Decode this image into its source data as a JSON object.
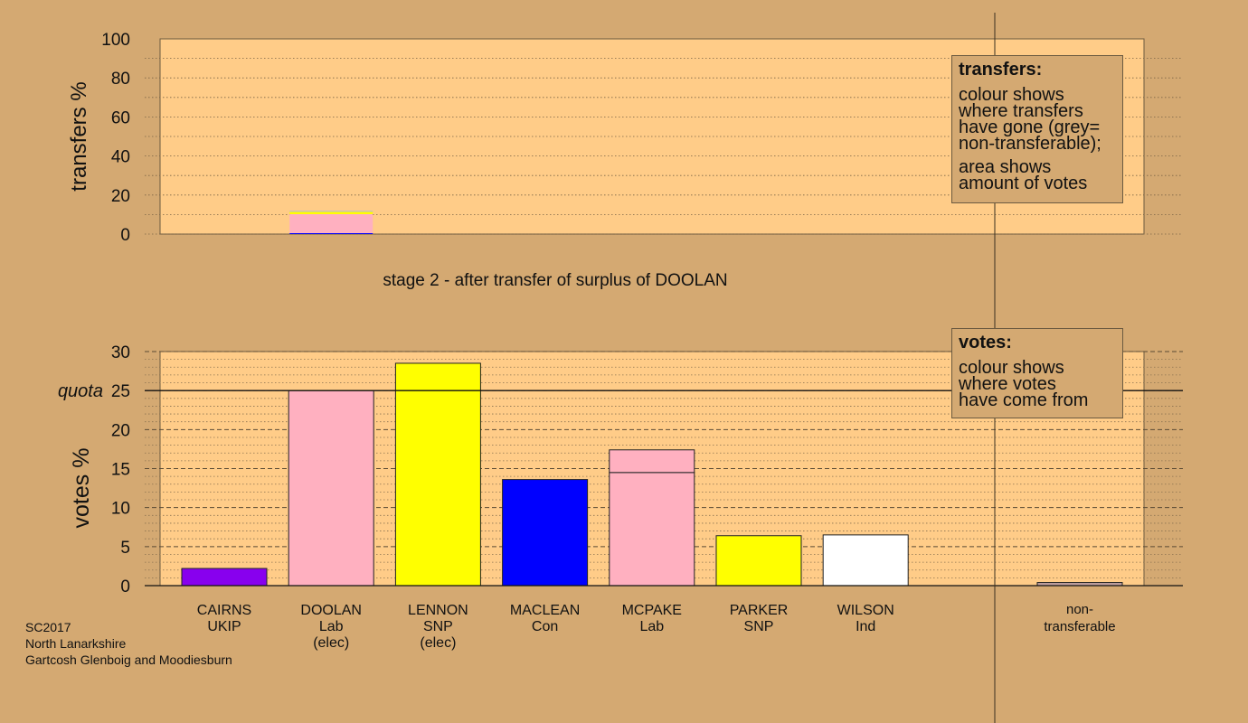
{
  "colors": {
    "background": "#d4a972",
    "plot_area": "#ffcc88",
    "UKIP": "#8800ee",
    "Lab": "#ffb0c0",
    "SNP": "#ffff00",
    "Con": "#0000ff",
    "Ind": "#ffffff",
    "non_transferable": "#c0a0a0"
  },
  "caption": "stage 2 - after transfer of surplus of DOOLAN",
  "quota_label": "quota",
  "transfers_legend": {
    "title": "transfers:",
    "line1": "colour shows",
    "line2": "where transfers",
    "line3": "have gone (grey=",
    "line4": "non-transferable);",
    "line5": "area shows",
    "line6": "amount of votes"
  },
  "votes_legend": {
    "title": "votes:",
    "line1": "colour shows",
    "line2": "where votes",
    "line3": "have come from"
  },
  "credits": {
    "line1": "SC2017",
    "line2": "North Lanarkshire",
    "line3": "Gartcosh Glenboig and Moodiesburn"
  },
  "chart_data": [
    {
      "type": "bar",
      "ylabel": "transfers %",
      "ylim": [
        0,
        100
      ],
      "yticks": [
        0,
        20,
        40,
        60,
        80,
        100
      ],
      "grid": "dotted horizontal every 10",
      "legend": "top-right",
      "bars": [
        {
          "slot": 1,
          "segments": [
            {
              "value": 0.5,
              "color": "#0000ff"
            },
            {
              "value": 9.7,
              "color": "#ffb0c0"
            },
            {
              "value": 1.2,
              "color": "#ffff00"
            },
            {
              "value": 0.6,
              "color": "#c0c0c0"
            }
          ]
        }
      ]
    },
    {
      "type": "bar",
      "ylabel": "votes %",
      "ylim": [
        0,
        30
      ],
      "yticks": [
        0,
        5,
        10,
        15,
        20,
        25,
        30
      ],
      "quota": 25,
      "grid": "dashed every 5, dotted every 1",
      "legend": "top-right",
      "categories": [
        {
          "name": "CAIRNS",
          "party": "UKIP",
          "note": ""
        },
        {
          "name": "DOOLAN",
          "party": "Lab",
          "note": "(elec)"
        },
        {
          "name": "LENNON",
          "party": "SNP",
          "note": "(elec)"
        },
        {
          "name": "MACLEAN",
          "party": "Con",
          "note": ""
        },
        {
          "name": "MCPAKE",
          "party": "Lab",
          "note": ""
        },
        {
          "name": "PARKER",
          "party": "SNP",
          "note": ""
        },
        {
          "name": "WILSON",
          "party": "Ind",
          "note": ""
        }
      ],
      "values": [
        2.2,
        25.0,
        28.5,
        13.6,
        17.4,
        6.4,
        6.5
      ],
      "segments": [
        [
          {
            "value": 2.2,
            "color": "#8800ee"
          }
        ],
        [
          {
            "value": 25.0,
            "color": "#ffb0c0"
          }
        ],
        [
          {
            "value": 28.5,
            "color": "#ffff00"
          }
        ],
        [
          {
            "value": 13.6,
            "color": "#0000ff"
          }
        ],
        [
          {
            "value": 14.5,
            "color": "#ffb0c0"
          },
          {
            "value": 2.9,
            "color": "#ffb0c0"
          }
        ],
        [
          {
            "value": 6.4,
            "color": "#ffff00"
          }
        ],
        [
          {
            "value": 6.5,
            "color": "#ffffff"
          }
        ]
      ],
      "non_transferable": {
        "line1": "non-",
        "line2": "transferable",
        "value": 0.4
      }
    }
  ]
}
